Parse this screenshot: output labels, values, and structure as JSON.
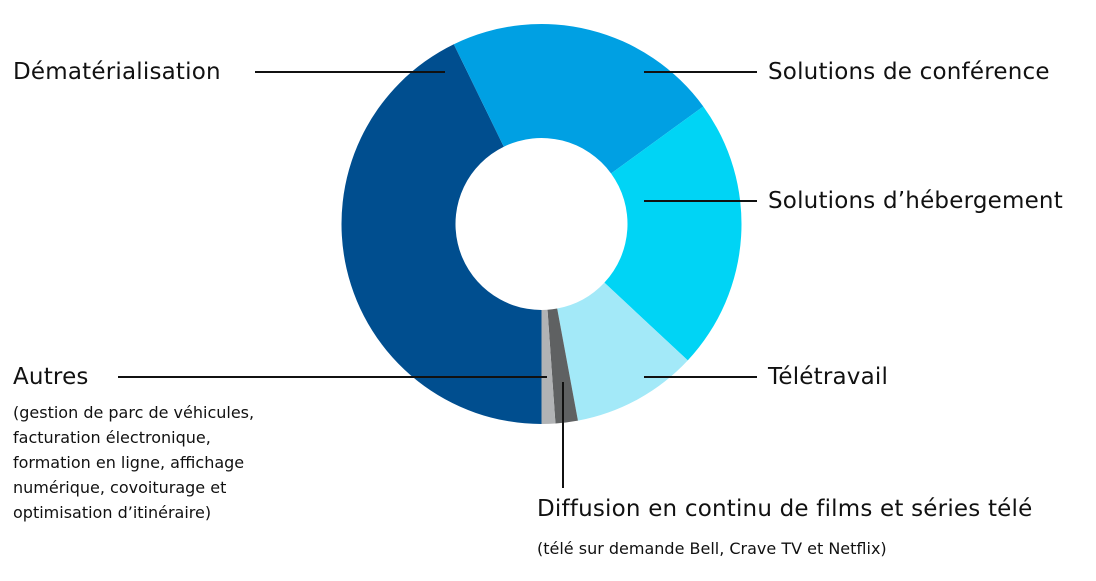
{
  "chart_data": {
    "type": "pie",
    "subtype": "donut",
    "title": "",
    "center": [
      541.5,
      224
    ],
    "outer_radius": 200,
    "inner_radius": 86,
    "start_angle_deg": 180,
    "direction": "clockwise",
    "slices": [
      {
        "key": "demat",
        "label": "Dématérialisation",
        "value": 42.8,
        "color": "#004E8F",
        "start": 180,
        "end": 334
      },
      {
        "key": "conference",
        "label": "Solutions de conférence",
        "value": 22.2,
        "color": "#00A0E3",
        "start": 334,
        "end": 414
      },
      {
        "key": "hebergement",
        "label": "Solutions d’hébergement",
        "value": 21.9,
        "color": "#00D4F5",
        "start": 54,
        "end": 133
      },
      {
        "key": "teletravail",
        "label": "Télétravail",
        "value": 10.1,
        "color": "#A3E9F8",
        "start": 133,
        "end": 169.5
      },
      {
        "key": "diffusion",
        "label": "Diffusion en continu de films et séries télé",
        "value": 1.8,
        "color": "#5F6162",
        "start": 169.5,
        "end": 176
      },
      {
        "key": "autres",
        "label": "Autres",
        "value": 1.1,
        "color": "#B1B3B5",
        "start": 176,
        "end": 180
      }
    ],
    "legend": "callout labels",
    "units": "percent (estimated from angles)"
  },
  "labels": {
    "demat": "Dématérialisation",
    "conference": "Solutions de conférence",
    "hebergement": "Solutions d’hébergement",
    "teletravail": "Télétravail",
    "autres": "Autres",
    "autres_detail": [
      "(gestion de parc de véhicules,",
      "facturation électronique,",
      "formation en ligne, affichage",
      "numérique, covoiturage et",
      "optimisation d’itinéraire)"
    ],
    "diffusion": "Diffusion en continu de films et séries télé",
    "diffusion_detail": "(télé sur demande Bell, Crave TV et Netflix)"
  }
}
